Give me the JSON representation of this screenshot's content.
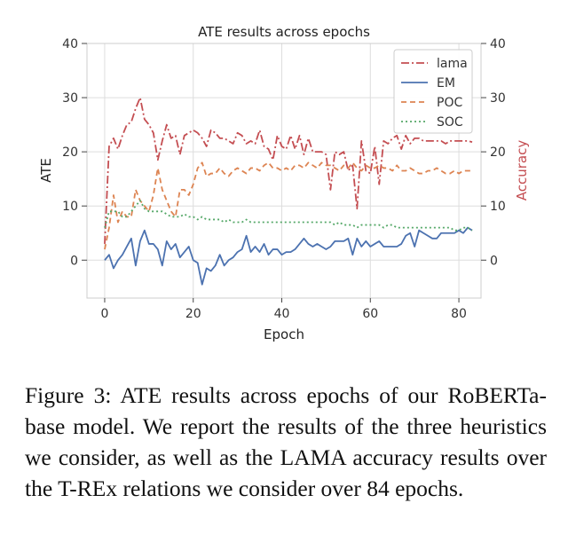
{
  "chart_data": {
    "type": "line",
    "title": "ATE results across epochs",
    "xlabel": "Epoch",
    "ylabel": "ATE",
    "ylabel_right": "Accuracy",
    "xlim": [
      -4,
      85
    ],
    "ylim": [
      -7,
      40
    ],
    "ylim_right": [
      -7,
      40
    ],
    "xticks": [
      0,
      20,
      40,
      60,
      80
    ],
    "yticks": [
      0,
      10,
      20,
      30,
      40
    ],
    "yticks_right": [
      0,
      10,
      20,
      30,
      40
    ],
    "grid": true,
    "legend_position": "top-right",
    "series": [
      {
        "name": "lama",
        "color": "#c44e52",
        "dash": "9,3,2,3",
        "axis": "right",
        "x": [
          0,
          1,
          2,
          3,
          4,
          5,
          6,
          7,
          8,
          9,
          10,
          11,
          12,
          13,
          14,
          15,
          16,
          17,
          18,
          19,
          20,
          21,
          22,
          23,
          24,
          25,
          26,
          27,
          28,
          29,
          30,
          31,
          32,
          33,
          34,
          35,
          36,
          37,
          38,
          39,
          40,
          41,
          42,
          43,
          44,
          45,
          46,
          47,
          48,
          49,
          50,
          51,
          52,
          53,
          54,
          55,
          56,
          57,
          58,
          59,
          60,
          61,
          62,
          63,
          64,
          65,
          66,
          67,
          68,
          69,
          70,
          71,
          72,
          73,
          74,
          75,
          76,
          77,
          78,
          79,
          80,
          81,
          82,
          83
        ],
        "values": [
          3,
          21,
          22.5,
          20.5,
          23,
          25,
          25.5,
          28,
          30,
          26,
          25,
          23.5,
          18.5,
          22,
          25,
          22.5,
          23,
          19.5,
          23,
          23.5,
          24,
          23.5,
          22.5,
          21,
          24,
          23.5,
          22.5,
          22.5,
          22,
          21.5,
          23.5,
          23,
          21.5,
          22,
          21.5,
          24,
          21,
          20.5,
          18.5,
          23,
          21,
          20.5,
          23,
          20.5,
          23,
          19.5,
          22.5,
          20,
          20,
          20,
          19.5,
          13,
          20,
          19.5,
          20,
          16.5,
          17.5,
          9.5,
          22,
          16.5,
          16,
          21,
          14,
          22,
          21.5,
          22.5,
          23,
          20.5,
          23,
          21.5,
          22.5,
          22.5,
          22,
          22,
          22,
          22,
          22,
          21.5,
          22,
          22,
          22,
          22,
          22,
          21.8
        ]
      },
      {
        "name": "EM",
        "color": "#4c72b0",
        "dash": "",
        "axis": "left",
        "x": [
          0,
          1,
          2,
          3,
          4,
          5,
          6,
          7,
          8,
          9,
          10,
          11,
          12,
          13,
          14,
          15,
          16,
          17,
          18,
          19,
          20,
          21,
          22,
          23,
          24,
          25,
          26,
          27,
          28,
          29,
          30,
          31,
          32,
          33,
          34,
          35,
          36,
          37,
          38,
          39,
          40,
          41,
          42,
          43,
          44,
          45,
          46,
          47,
          48,
          49,
          50,
          51,
          52,
          53,
          54,
          55,
          56,
          57,
          58,
          59,
          60,
          61,
          62,
          63,
          64,
          65,
          66,
          67,
          68,
          69,
          70,
          71,
          72,
          73,
          74,
          75,
          76,
          77,
          78,
          79,
          80,
          81,
          82,
          83
        ],
        "values": [
          0,
          1,
          -1.5,
          0,
          1,
          2.5,
          4,
          -1,
          3.5,
          5.5,
          3,
          3,
          2,
          -1,
          3.5,
          2,
          3,
          0.5,
          1.5,
          2.5,
          0,
          -0.5,
          -4.5,
          -1.5,
          -2,
          -1,
          1,
          -1,
          0,
          0.5,
          1.5,
          2,
          4.5,
          1.5,
          2.5,
          1.5,
          3,
          1,
          2,
          2,
          1,
          1.5,
          1.5,
          2,
          3,
          4,
          3,
          2.5,
          3,
          2.5,
          2,
          2.5,
          3.5,
          3.5,
          3.5,
          4,
          1,
          4,
          2.5,
          3.5,
          2.5,
          3,
          3.5,
          2.5,
          2.5,
          2.5,
          2.5,
          3,
          4.5,
          5,
          2.5,
          5.5,
          5,
          4.5,
          4,
          4,
          5,
          5,
          5,
          5,
          5.5,
          5,
          6,
          5.5
        ]
      },
      {
        "name": "POC",
        "color": "#dd8452",
        "dash": "6,4",
        "axis": "left",
        "x": [
          0,
          1,
          2,
          3,
          4,
          5,
          6,
          7,
          8,
          9,
          10,
          11,
          12,
          13,
          14,
          15,
          16,
          17,
          18,
          19,
          20,
          21,
          22,
          23,
          24,
          25,
          26,
          27,
          28,
          29,
          30,
          31,
          32,
          33,
          34,
          35,
          36,
          37,
          38,
          39,
          40,
          41,
          42,
          43,
          44,
          45,
          46,
          47,
          48,
          49,
          50,
          51,
          52,
          53,
          54,
          55,
          56,
          57,
          58,
          59,
          60,
          61,
          62,
          63,
          64,
          65,
          66,
          67,
          68,
          69,
          70,
          71,
          72,
          73,
          74,
          75,
          76,
          77,
          78,
          79,
          80,
          81,
          82,
          83
        ],
        "values": [
          2,
          6,
          12,
          7,
          9,
          8,
          8,
          13,
          11,
          10,
          9,
          12,
          17,
          13,
          11,
          9,
          8,
          13,
          13,
          12,
          14,
          17,
          18,
          15.5,
          16,
          16,
          17,
          16,
          15.5,
          16.5,
          17,
          16.5,
          16,
          17,
          17,
          16.5,
          17.5,
          18,
          17,
          17,
          16.5,
          17,
          16.5,
          17.5,
          17.5,
          17,
          18,
          17.5,
          17,
          18,
          17.5,
          17.5,
          17,
          16.5,
          17.5,
          17,
          18,
          17,
          16.5,
          17.5,
          17,
          17,
          17.5,
          17,
          17,
          16.5,
          17.5,
          16.5,
          16.5,
          17,
          16.5,
          16,
          16,
          16.5,
          16.5,
          17,
          16.5,
          16,
          16,
          16.5,
          16,
          16.5,
          16.5,
          16.5
        ]
      },
      {
        "name": "SOC",
        "color": "#55a868",
        "dash": "2,3",
        "axis": "left",
        "x": [
          0,
          1,
          2,
          3,
          4,
          5,
          6,
          7,
          8,
          9,
          10,
          11,
          12,
          13,
          14,
          15,
          16,
          17,
          18,
          19,
          20,
          21,
          22,
          23,
          24,
          25,
          26,
          27,
          28,
          29,
          30,
          31,
          32,
          33,
          34,
          35,
          36,
          37,
          38,
          39,
          40,
          41,
          42,
          43,
          44,
          45,
          46,
          47,
          48,
          49,
          50,
          51,
          52,
          53,
          54,
          55,
          56,
          57,
          58,
          59,
          60,
          61,
          62,
          63,
          64,
          65,
          66,
          67,
          68,
          69,
          70,
          71,
          72,
          73,
          74,
          75,
          76,
          77,
          78,
          79,
          80,
          81,
          82,
          83
        ],
        "values": [
          6,
          9,
          9,
          9,
          8,
          8,
          9,
          10,
          11,
          9.5,
          9,
          9,
          9,
          9,
          8.5,
          8,
          8,
          8,
          8.5,
          8,
          8,
          7.5,
          8,
          7.5,
          7.5,
          7.5,
          7.5,
          7,
          7.5,
          7,
          7,
          7,
          7.5,
          7,
          7,
          7,
          7,
          7,
          7,
          7,
          7,
          7,
          7,
          7,
          7,
          7,
          7,
          7,
          7,
          7,
          7,
          7,
          6.5,
          7,
          6.5,
          6.5,
          6.5,
          6,
          6.5,
          6.5,
          6.5,
          6.5,
          6.5,
          6,
          6.5,
          6.5,
          6,
          6,
          6,
          6,
          6,
          6,
          6,
          6,
          6,
          6,
          6,
          6,
          6,
          5.5,
          5.5,
          6,
          6,
          5.5
        ]
      }
    ]
  },
  "caption": {
    "label": "Figure 3:",
    "text": "ATE results across epochs of our RoBERTa-base model. We report the results of the three heuristics we consider, as well as the LAMA accuracy results over the T-REx relations we consider over 84 epochs."
  }
}
